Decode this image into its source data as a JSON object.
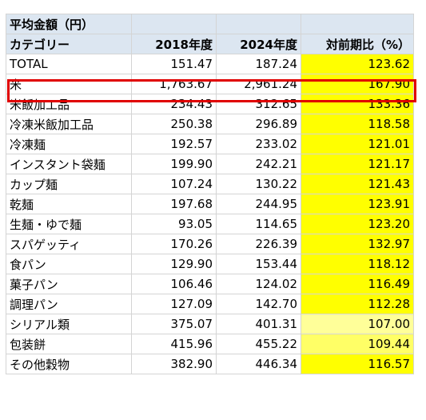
{
  "title": "平均金額（円）",
  "headers": [
    "カテゴリー",
    "2018年度",
    "2024年度",
    "対前期比（%）"
  ],
  "rows": [
    {
      "category": "TOTAL",
      "y2018": "151.47",
      "y2024": "187.24",
      "ratio": "123.62",
      "ratio_color": "#ffff00"
    },
    {
      "category": "米",
      "y2018": "1,763.67",
      "y2024": "2,961.24",
      "ratio": "167.90",
      "ratio_color": "#ffff00"
    },
    {
      "category": "米飯加工品",
      "y2018": "234.43",
      "y2024": "312.65",
      "ratio": "133.36",
      "ratio_color": "#ffff00"
    },
    {
      "category": "冷凍米飯加工品",
      "y2018": "250.38",
      "y2024": "296.89",
      "ratio": "118.58",
      "ratio_color": "#ffff00"
    },
    {
      "category": "冷凍麺",
      "y2018": "192.57",
      "y2024": "233.02",
      "ratio": "121.01",
      "ratio_color": "#ffff00"
    },
    {
      "category": "インスタント袋麺",
      "y2018": "199.90",
      "y2024": "242.21",
      "ratio": "121.17",
      "ratio_color": "#ffff00"
    },
    {
      "category": "カップ麺",
      "y2018": "107.24",
      "y2024": "130.22",
      "ratio": "121.43",
      "ratio_color": "#ffff00"
    },
    {
      "category": "乾麺",
      "y2018": "197.68",
      "y2024": "244.95",
      "ratio": "123.91",
      "ratio_color": "#ffff00"
    },
    {
      "category": "生麺・ゆで麺",
      "y2018": "93.05",
      "y2024": "114.65",
      "ratio": "123.20",
      "ratio_color": "#ffff00"
    },
    {
      "category": "スパゲッティ",
      "y2018": "170.26",
      "y2024": "226.39",
      "ratio": "132.97",
      "ratio_color": "#ffff00"
    },
    {
      "category": "食パン",
      "y2018": "129.90",
      "y2024": "153.44",
      "ratio": "118.12",
      "ratio_color": "#ffff00"
    },
    {
      "category": "菓子パン",
      "y2018": "106.46",
      "y2024": "124.02",
      "ratio": "116.49",
      "ratio_color": "#ffff00"
    },
    {
      "category": "調理パン",
      "y2018": "127.09",
      "y2024": "142.70",
      "ratio": "112.28",
      "ratio_color": "#ffff00"
    },
    {
      "category": "シリアル類",
      "y2018": "375.07",
      "y2024": "401.31",
      "ratio": "107.00",
      "ratio_color": "#ffff99"
    },
    {
      "category": "包装餅",
      "y2018": "415.96",
      "y2024": "455.22",
      "ratio": "109.44",
      "ratio_color": "#ffff66"
    },
    {
      "category": "その他穀物",
      "y2018": "382.90",
      "y2024": "446.34",
      "ratio": "116.57",
      "ratio_color": "#ffff00"
    }
  ],
  "highlight_row_index": 1,
  "highlight_color": "#e00000"
}
